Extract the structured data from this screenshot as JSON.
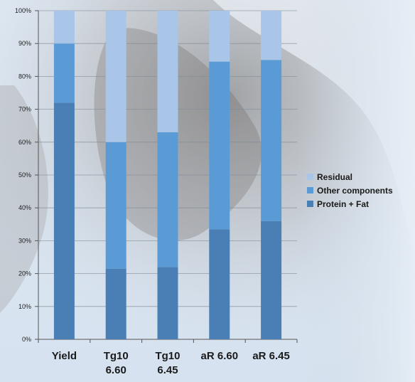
{
  "chart_data": {
    "type": "bar",
    "stacked": true,
    "normalized": true,
    "categories": [
      [
        "Yield"
      ],
      [
        "Tg10",
        "6.60"
      ],
      [
        "Tg10",
        "6.45"
      ],
      [
        "aR 6.60"
      ],
      [
        "aR 6.45"
      ]
    ],
    "series": [
      {
        "name": "Protein + Fat",
        "color": "#4a7fb5",
        "values": [
          72.0,
          21.5,
          22.0,
          33.5,
          36.0
        ]
      },
      {
        "name": "Other components",
        "color": "#5b9bd5",
        "values": [
          18.0,
          38.5,
          41.0,
          51.0,
          49.0
        ]
      },
      {
        "name": "Residual",
        "color": "#a9c6e8",
        "values": [
          10.0,
          40.0,
          37.0,
          15.5,
          15.0
        ]
      }
    ],
    "yticks": [
      "0%",
      "10%",
      "20%",
      "30%",
      "40%",
      "50%",
      "60%",
      "70%",
      "80%",
      "90%",
      "100%"
    ],
    "ylim": [
      0,
      100
    ],
    "grid": true,
    "legend_position": "right"
  }
}
